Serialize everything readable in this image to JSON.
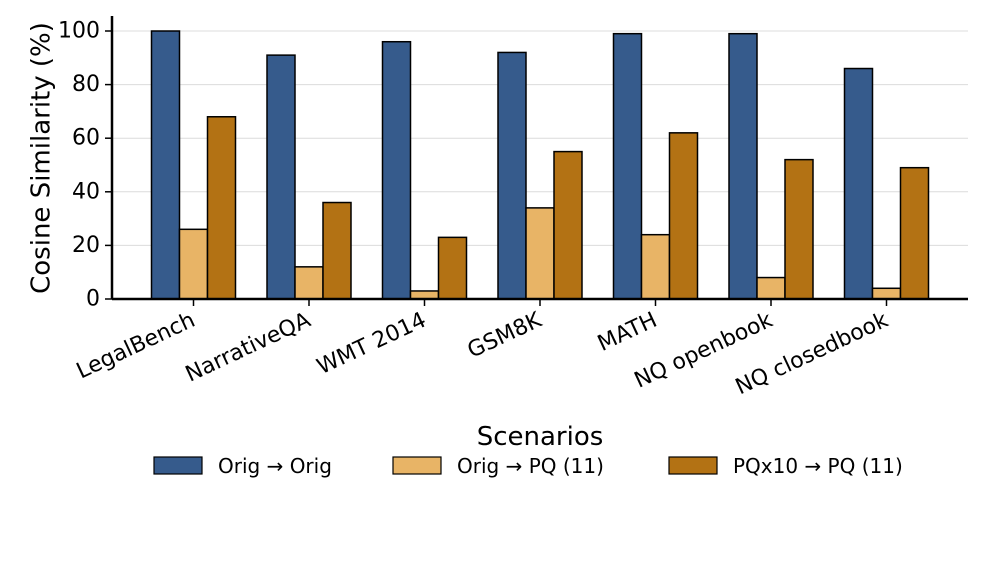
{
  "chart_data": {
    "type": "bar",
    "title": "",
    "xlabel": "Scenarios",
    "ylabel": "Cosine Similarity (%)",
    "ylim": [
      0,
      105
    ],
    "yticks": [
      0,
      20,
      40,
      60,
      80,
      100
    ],
    "grid": "horizontal",
    "legend_position": "bottom",
    "categories": [
      "LegalBench",
      "NarrativeQA",
      "WMT 2014",
      "GSM8K",
      "MATH",
      "NQ openbook",
      "NQ closedbook"
    ],
    "series": [
      {
        "name": "Orig → Orig",
        "color": "#365b8c",
        "values": [
          100,
          91,
          96,
          92,
          99,
          99,
          86
        ]
      },
      {
        "name": "Orig → PQ (11)",
        "color": "#e8b466",
        "values": [
          26,
          12,
          3,
          34,
          24,
          8,
          4
        ]
      },
      {
        "name": "PQx10 → PQ (11)",
        "color": "#b37214",
        "values": [
          68,
          36,
          23,
          55,
          62,
          52,
          49
        ]
      }
    ]
  }
}
